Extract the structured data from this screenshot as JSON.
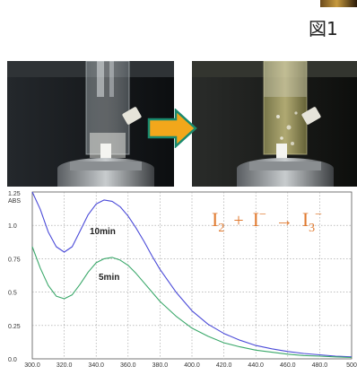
{
  "figure_label": "図1",
  "equation": {
    "left": "I",
    "left_sub": "2",
    "plus": "+",
    "middle": "I",
    "middle_sup": "−",
    "arrow": "→",
    "right": "I",
    "right_sub": "3",
    "right_sup": "−",
    "color": "#e07a30"
  },
  "arrow_colors": {
    "fill": "#f2a71b",
    "outline": "#1a8a6e"
  },
  "chart_data": {
    "type": "line",
    "ylabel": "ABS",
    "xlim": [
      300,
      500
    ],
    "ylim": [
      0,
      1.25
    ],
    "xticks": [
      "300.0",
      "320.0",
      "340.0",
      "360.0",
      "380.0",
      "400.0",
      "420.0",
      "440.0",
      "460.0",
      "480.0",
      "500"
    ],
    "yticks": [
      "1.25",
      "1.0",
      "0.75",
      "0.5",
      "0.25",
      "0.0"
    ],
    "grid": true,
    "series": [
      {
        "name": "10min",
        "color": "#4a4ad8",
        "x": [
          300,
          305,
          310,
          315,
          320,
          325,
          330,
          335,
          340,
          345,
          350,
          355,
          360,
          365,
          370,
          375,
          380,
          390,
          400,
          410,
          420,
          430,
          440,
          450,
          460,
          470,
          480,
          490,
          500
        ],
        "y": [
          1.25,
          1.12,
          0.95,
          0.84,
          0.8,
          0.84,
          0.96,
          1.08,
          1.16,
          1.19,
          1.18,
          1.14,
          1.07,
          0.98,
          0.88,
          0.77,
          0.67,
          0.5,
          0.36,
          0.26,
          0.19,
          0.14,
          0.1,
          0.075,
          0.055,
          0.04,
          0.03,
          0.02,
          0.015
        ]
      },
      {
        "name": "5min",
        "color": "#3aa86a",
        "x": [
          300,
          305,
          310,
          315,
          320,
          325,
          330,
          335,
          340,
          345,
          350,
          355,
          360,
          365,
          370,
          375,
          380,
          390,
          400,
          410,
          420,
          430,
          440,
          450,
          460,
          470,
          480,
          490,
          500
        ],
        "y": [
          0.84,
          0.68,
          0.55,
          0.47,
          0.45,
          0.48,
          0.56,
          0.65,
          0.72,
          0.75,
          0.76,
          0.74,
          0.7,
          0.64,
          0.57,
          0.5,
          0.43,
          0.32,
          0.23,
          0.17,
          0.12,
          0.09,
          0.065,
          0.05,
          0.035,
          0.025,
          0.02,
          0.015,
          0.01
        ]
      }
    ]
  }
}
